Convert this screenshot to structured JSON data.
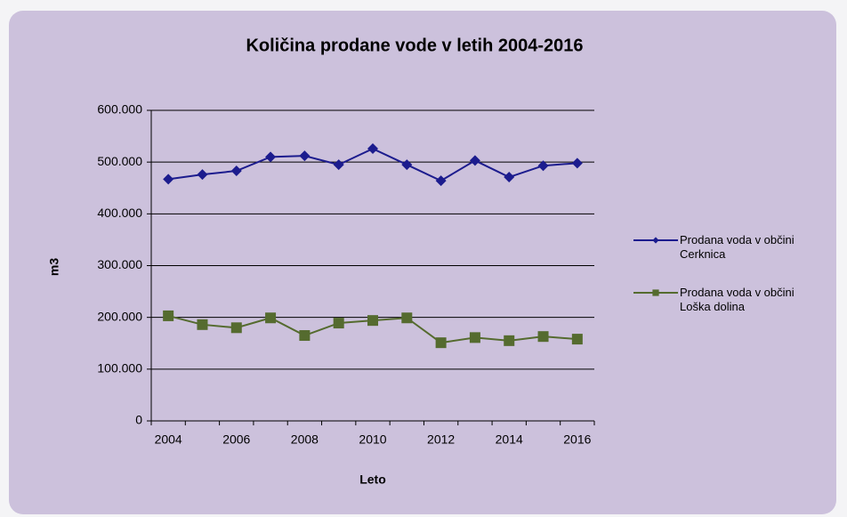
{
  "chart_data": {
    "type": "line",
    "title": "Količina prodane vode v letih 2004-2016",
    "x_label": "Leto",
    "y_label": "m3",
    "categories": [
      "2004",
      null,
      "2006",
      null,
      "2008",
      null,
      "2010",
      null,
      "2012",
      null,
      "2014",
      null,
      "2016"
    ],
    "series": [
      {
        "name": "Prodana voda v občini Cerknica",
        "color": "#1c1c8e",
        "marker": "diamond",
        "values": [
          467000,
          476000,
          483000,
          510000,
          512000,
          495000,
          526000,
          495000,
          464000,
          503000,
          471000,
          493000,
          498000
        ]
      },
      {
        "name": "Prodana voda v občini Loška dolina",
        "color": "#556b2f",
        "marker": "square",
        "values": [
          203000,
          186000,
          180000,
          199000,
          165000,
          189000,
          194000,
          199000,
          151000,
          161000,
          155000,
          163000,
          158000
        ]
      }
    ],
    "ylim": [
      0,
      600000
    ],
    "yticks": [
      0,
      {
        "value": 100000,
        "label": "100.000"
      },
      {
        "value": 200000,
        "label": "200.000"
      },
      {
        "value": 300000,
        "label": "300.000"
      },
      {
        "value": 400000,
        "label": "400.000"
      },
      {
        "value": 500000,
        "label": "500.000"
      },
      {
        "value": 600000,
        "label": "600.000"
      }
    ],
    "grid": true,
    "legend": "right"
  }
}
